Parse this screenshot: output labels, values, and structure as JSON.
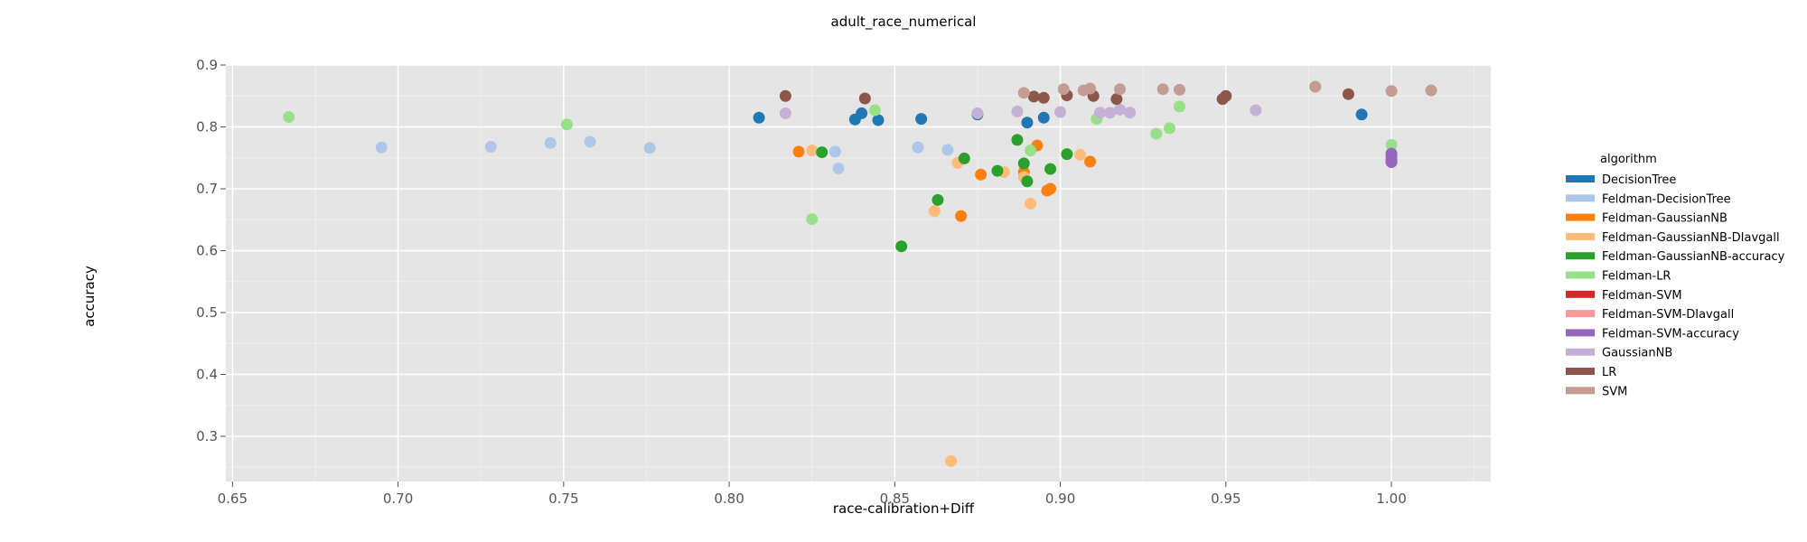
{
  "chart_data": {
    "type": "scatter",
    "title": "adult_race_numerical",
    "xlabel": "race-calibration+Diff",
    "ylabel": "accuracy",
    "xlim": [
      0.648,
      1.03
    ],
    "ylim": [
      0.227,
      0.9
    ],
    "x_ticks": [
      "0.65",
      "0.70",
      "0.75",
      "0.80",
      "0.85",
      "0.90",
      "0.95",
      "1.00"
    ],
    "y_ticks": [
      "0.3",
      "0.4",
      "0.5",
      "0.6",
      "0.7",
      "0.8",
      "0.9"
    ],
    "grid": true,
    "legend": {
      "title": "algorithm",
      "placement": "right"
    },
    "series": [
      {
        "name": "DecisionTree",
        "color": "#1f77b4",
        "points": [
          [
            0.809,
            0.815
          ],
          [
            0.838,
            0.812
          ],
          [
            0.84,
            0.822
          ],
          [
            0.845,
            0.811
          ],
          [
            0.858,
            0.813
          ],
          [
            0.875,
            0.82
          ],
          [
            0.89,
            0.807
          ],
          [
            0.895,
            0.815
          ],
          [
            0.991,
            0.82
          ]
        ]
      },
      {
        "name": "Feldman-DecisionTree",
        "color": "#aec7e8",
        "points": [
          [
            0.695,
            0.767
          ],
          [
            0.728,
            0.768
          ],
          [
            0.746,
            0.774
          ],
          [
            0.758,
            0.776
          ],
          [
            0.776,
            0.766
          ],
          [
            0.832,
            0.76
          ],
          [
            0.833,
            0.733
          ],
          [
            0.857,
            0.767
          ],
          [
            0.866,
            0.763
          ]
        ]
      },
      {
        "name": "Feldman-GaussianNB",
        "color": "#ff7f0e",
        "points": [
          [
            0.821,
            0.76
          ],
          [
            0.87,
            0.656
          ],
          [
            0.876,
            0.723
          ],
          [
            0.889,
            0.727
          ],
          [
            0.893,
            0.77
          ],
          [
            0.896,
            0.697
          ],
          [
            0.897,
            0.7
          ],
          [
            0.909,
            0.744
          ]
        ]
      },
      {
        "name": "Feldman-GaussianNB-DIavgall",
        "color": "#ffbb78",
        "points": [
          [
            0.825,
            0.762
          ],
          [
            0.862,
            0.664
          ],
          [
            0.867,
            0.26
          ],
          [
            0.869,
            0.742
          ],
          [
            0.883,
            0.727
          ],
          [
            0.889,
            0.719
          ],
          [
            0.891,
            0.676
          ],
          [
            0.906,
            0.755
          ]
        ]
      },
      {
        "name": "Feldman-GaussianNB-accuracy",
        "color": "#2ca02c",
        "points": [
          [
            0.828,
            0.759
          ],
          [
            0.852,
            0.607
          ],
          [
            0.863,
            0.682
          ],
          [
            0.871,
            0.749
          ],
          [
            0.881,
            0.729
          ],
          [
            0.887,
            0.779
          ],
          [
            0.889,
            0.741
          ],
          [
            0.89,
            0.712
          ],
          [
            0.897,
            0.732
          ],
          [
            0.902,
            0.756
          ]
        ]
      },
      {
        "name": "Feldman-LR",
        "color": "#98df8a",
        "points": [
          [
            0.667,
            0.816
          ],
          [
            0.751,
            0.804
          ],
          [
            0.825,
            0.651
          ],
          [
            0.844,
            0.827
          ],
          [
            0.891,
            0.762
          ],
          [
            0.911,
            0.813
          ],
          [
            0.929,
            0.789
          ],
          [
            0.933,
            0.798
          ],
          [
            0.936,
            0.833
          ],
          [
            1.0,
            0.771
          ]
        ]
      },
      {
        "name": "Feldman-SVM",
        "color": "#d62728",
        "points": []
      },
      {
        "name": "Feldman-SVM-DIavgall",
        "color": "#ff9896",
        "points": []
      },
      {
        "name": "Feldman-SVM-accuracy",
        "color": "#9467bd",
        "points": [
          [
            1.0,
            0.757
          ],
          [
            1.0,
            0.752
          ],
          [
            1.0,
            0.747
          ],
          [
            1.0,
            0.743
          ]
        ]
      },
      {
        "name": "GaussianNB",
        "color": "#c5b0d5",
        "points": [
          [
            0.817,
            0.822
          ],
          [
            0.875,
            0.822
          ],
          [
            0.887,
            0.825
          ],
          [
            0.9,
            0.824
          ],
          [
            0.912,
            0.823
          ],
          [
            0.915,
            0.823
          ],
          [
            0.918,
            0.828
          ],
          [
            0.921,
            0.823
          ],
          [
            0.959,
            0.827
          ]
        ]
      },
      {
        "name": "LR",
        "color": "#8c564b",
        "points": [
          [
            0.817,
            0.85
          ],
          [
            0.841,
            0.846
          ],
          [
            0.892,
            0.849
          ],
          [
            0.895,
            0.847
          ],
          [
            0.902,
            0.851
          ],
          [
            0.91,
            0.85
          ],
          [
            0.917,
            0.845
          ],
          [
            0.949,
            0.845
          ],
          [
            0.95,
            0.85
          ],
          [
            0.987,
            0.853
          ]
        ]
      },
      {
        "name": "SVM",
        "color": "#c49c94",
        "points": [
          [
            0.889,
            0.855
          ],
          [
            0.901,
            0.861
          ],
          [
            0.907,
            0.859
          ],
          [
            0.909,
            0.862
          ],
          [
            0.918,
            0.861
          ],
          [
            0.931,
            0.861
          ],
          [
            0.936,
            0.86
          ],
          [
            0.977,
            0.865
          ],
          [
            1.0,
            0.858
          ],
          [
            1.012,
            0.859
          ]
        ]
      }
    ]
  }
}
